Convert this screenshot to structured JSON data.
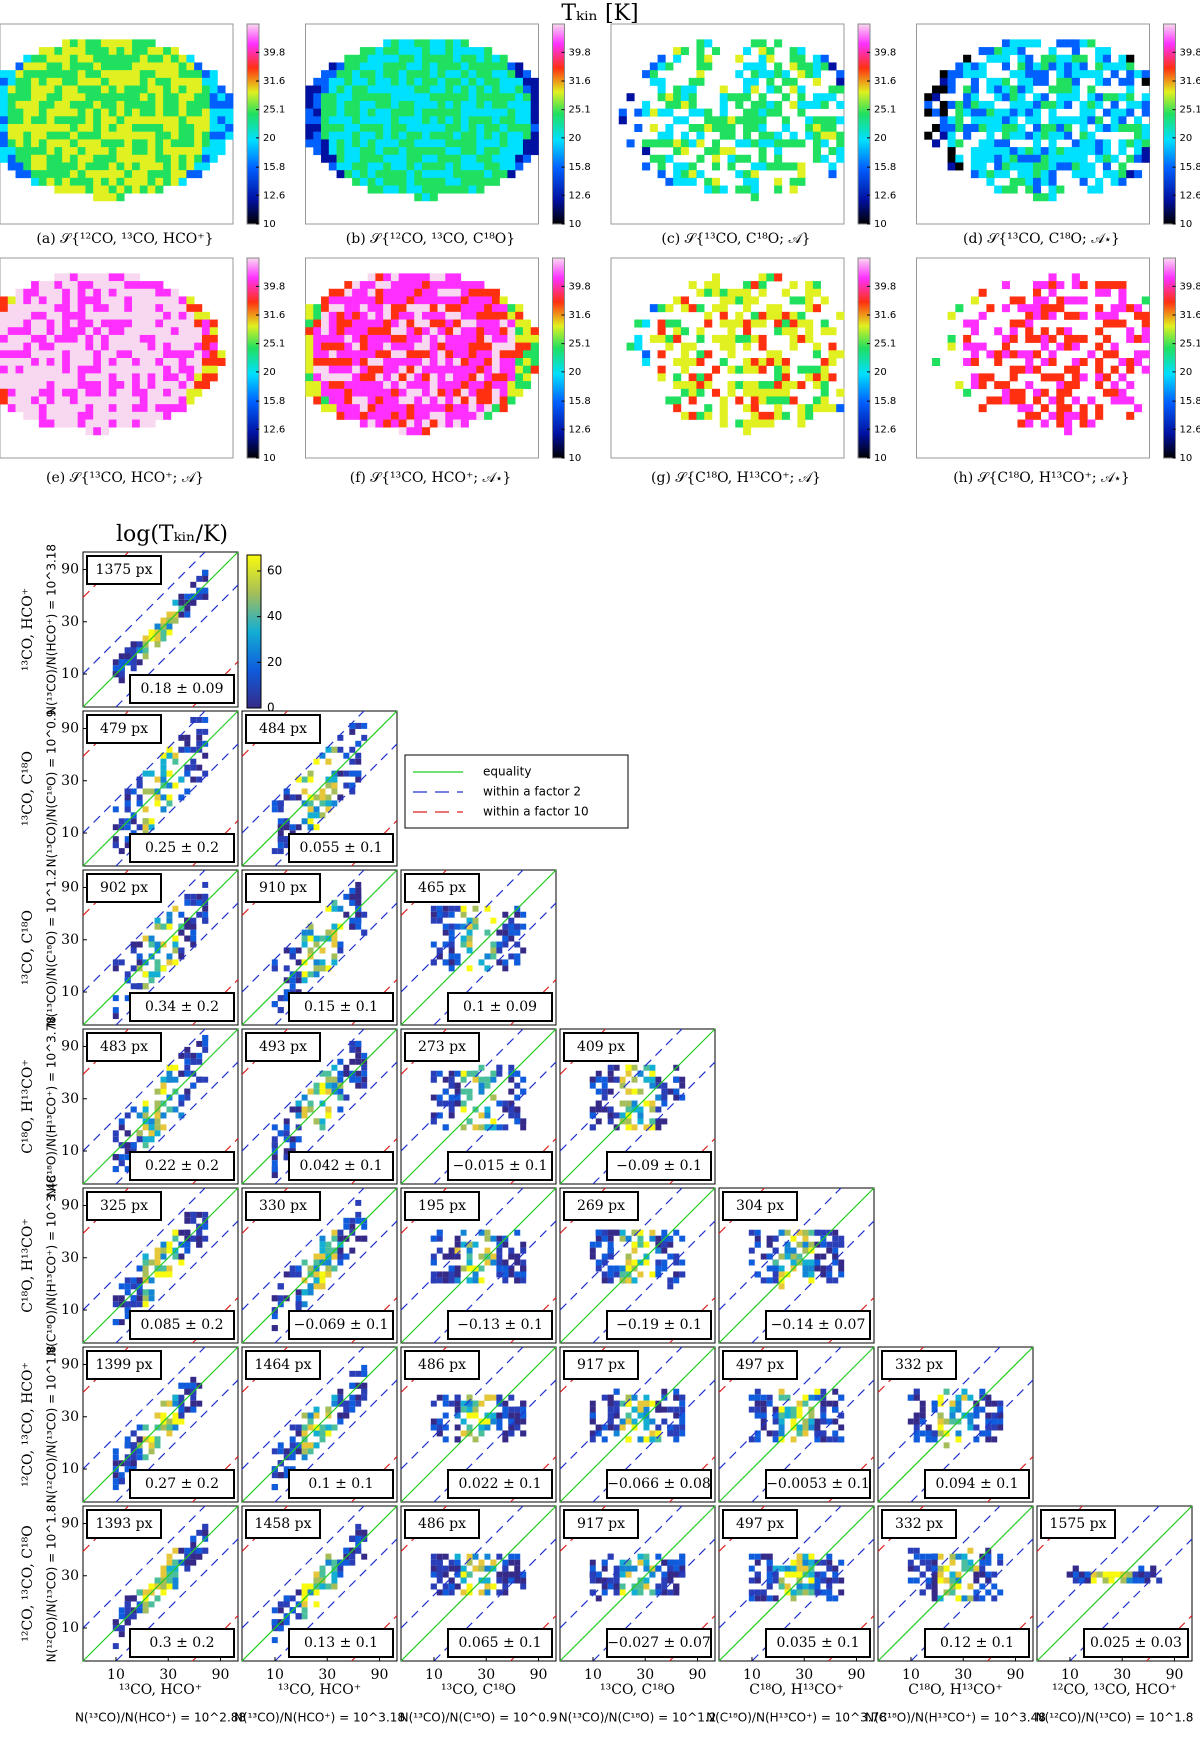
{
  "maps": {
    "title": "Tₖᵢₙ [K]",
    "colorbar": {
      "ticks": [
        10,
        12.6,
        15.8,
        20,
        25.1,
        31.6,
        39.8
      ],
      "lim": [
        10,
        50
      ],
      "log": true
    },
    "captions": [
      "(a) 𝒮{¹²CO, ¹³CO, HCO⁺}",
      "(b) 𝒮{¹²CO, ¹³CO, C¹⁸O}",
      "(c) 𝒮{¹³CO, C¹⁸O; 𝒜}",
      "(d) 𝒮{¹³CO, C¹⁸O; 𝒜⋆}",
      "(e) 𝒮{¹³CO, HCO⁺; 𝒜}",
      "(f) 𝒮{¹³CO, HCO⁺; 𝒜⋆}",
      "(g) 𝒮{C¹⁸O, H¹³CO⁺; 𝒜}",
      "(h) 𝒮{C¹⁸O, H¹³CO⁺; 𝒜⋆}"
    ]
  },
  "corner": {
    "title": "log(Tₖᵢₙ/K)",
    "colorbar": {
      "ticks": [
        0,
        20,
        40,
        60
      ],
      "lim": [
        0,
        67
      ]
    },
    "legend": [
      {
        "name": "equality",
        "color": "#22cc22",
        "dashed": false
      },
      {
        "name": "within a factor 2",
        "color": "#2233cc",
        "dashed": true
      },
      {
        "name": "within a factor 10",
        "color": "#dd2222",
        "dashed": true
      }
    ],
    "axis": {
      "ticks": [
        10,
        30,
        90
      ],
      "lim": [
        5,
        130
      ],
      "log": true
    },
    "rows": [
      {
        "species": "¹³CO, HCO⁺",
        "ratio": "N(¹³CO)/N(HCO⁺) = 10^3.18"
      },
      {
        "species": "¹³CO, C¹⁸O",
        "ratio": "N(¹³CO)/N(C¹⁸O) = 10^0.9"
      },
      {
        "species": "¹³CO, C¹⁸O",
        "ratio": "N(¹³CO)/N(C¹⁸O) = 10^1.2"
      },
      {
        "species": "C¹⁸O, H¹³CO⁺",
        "ratio": "N(C¹⁸O)/N(H¹³CO⁺) = 10^3.78"
      },
      {
        "species": "C¹⁸O, H¹³CO⁺",
        "ratio": "N(C¹⁸O)/N(H¹³CO⁺) = 10^3.48"
      },
      {
        "species": "¹²CO, ¹³CO, HCO⁺",
        "ratio": "N(¹²CO)/N(¹³CO) = 10^1.8"
      },
      {
        "species": "¹²CO, ¹³CO, C¹⁸O",
        "ratio": "N(¹²CO)/N(¹³CO) = 10^1.8"
      }
    ],
    "columns": [
      {
        "species": "¹³CO, HCO⁺",
        "ratio": "N(¹³CO)/N(HCO⁺) = 10^2.88"
      },
      {
        "species": "¹³CO, HCO⁺",
        "ratio": "N(¹³CO)/N(HCO⁺) = 10^3.18"
      },
      {
        "species": "¹³CO, C¹⁸O",
        "ratio": "N(¹³CO)/N(C¹⁸O) = 10^0.9"
      },
      {
        "species": "¹³CO, C¹⁸O",
        "ratio": "N(¹³CO)/N(C¹⁸O) = 10^1.2"
      },
      {
        "species": "C¹⁸O, H¹³CO⁺",
        "ratio": "N(C¹⁸O)/N(H¹³CO⁺) = 10^3.78"
      },
      {
        "species": "C¹⁸O, H¹³CO⁺",
        "ratio": "N(C¹⁸O)/N(H¹³CO⁺) = 10^3.48"
      },
      {
        "species": "¹²CO, ¹³CO, HCO⁺",
        "ratio": "N(¹²CO)/N(¹³CO) = 10^1.8"
      }
    ],
    "panels": [
      [
        {
          "count": "1375 px",
          "stat": "0.18 ± 0.09"
        }
      ],
      [
        {
          "count": "479 px",
          "stat": "0.25 ± 0.2"
        },
        {
          "count": "484 px",
          "stat": "0.055 ± 0.1"
        }
      ],
      [
        {
          "count": "902 px",
          "stat": "0.34 ± 0.2"
        },
        {
          "count": "910 px",
          "stat": "0.15 ± 0.1"
        },
        {
          "count": "465 px",
          "stat": "0.1 ± 0.09"
        }
      ],
      [
        {
          "count": "483 px",
          "stat": "0.22 ± 0.2"
        },
        {
          "count": "493 px",
          "stat": "0.042 ± 0.1"
        },
        {
          "count": "273 px",
          "stat": "−0.015 ± 0.1"
        },
        {
          "count": "409 px",
          "stat": "−0.09 ± 0.1"
        }
      ],
      [
        {
          "count": "325 px",
          "stat": "0.085 ± 0.2"
        },
        {
          "count": "330 px",
          "stat": "−0.069 ± 0.1"
        },
        {
          "count": "195 px",
          "stat": "−0.13 ± 0.1"
        },
        {
          "count": "269 px",
          "stat": "−0.19 ± 0.1"
        },
        {
          "count": "304 px",
          "stat": "−0.14 ± 0.07"
        }
      ],
      [
        {
          "count": "1399 px",
          "stat": "0.27 ± 0.2"
        },
        {
          "count": "1464 px",
          "stat": "0.1 ± 0.1"
        },
        {
          "count": "486 px",
          "stat": "0.022 ± 0.1"
        },
        {
          "count": "917 px",
          "stat": "−0.066 ± 0.08"
        },
        {
          "count": "497 px",
          "stat": "−0.0053 ± 0.1"
        },
        {
          "count": "332 px",
          "stat": "0.094 ± 0.1"
        }
      ],
      [
        {
          "count": "1393 px",
          "stat": "0.3 ± 0.2"
        },
        {
          "count": "1458 px",
          "stat": "0.13 ± 0.1"
        },
        {
          "count": "486 px",
          "stat": "0.065 ± 0.1"
        },
        {
          "count": "917 px",
          "stat": "−0.027 ± 0.07"
        },
        {
          "count": "497 px",
          "stat": "0.035 ± 0.1"
        },
        {
          "count": "332 px",
          "stat": "0.12 ± 0.1"
        },
        {
          "count": "1575 px",
          "stat": "0.025 ± 0.03"
        }
      ]
    ]
  }
}
